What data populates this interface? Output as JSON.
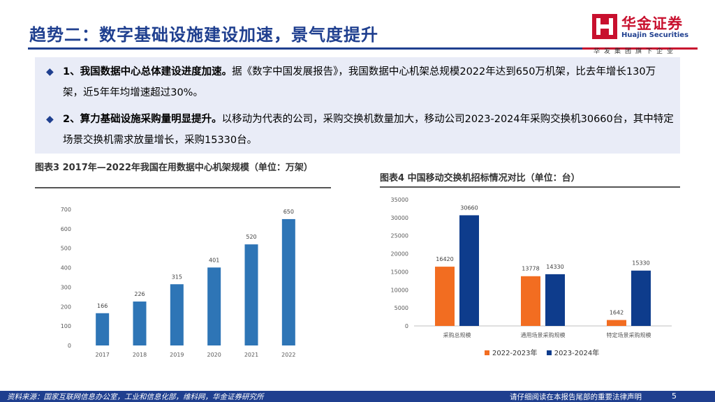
{
  "header": {
    "title": "趋势二：数字基础设施建设加速，景气度提升",
    "logo_cn": "华金证券",
    "logo_en": "Huajin Securities",
    "logo_slogan": "华发集团旗下企业",
    "accent_color": "#1f3f8f",
    "brand_red": "#c8102e"
  },
  "bullets": [
    {
      "bold": "1、我国数据中心总体建设进度加速。",
      "text": "据《数字中国发展报告》，我国数据中心机架总规模2022年达到650万机架，比去年增长130万架，近5年年均增速超过30%。"
    },
    {
      "bold": "2、算力基础设施采购量明显提升。",
      "text": "以移动为代表的公司，采购交换机数量加大，移动公司2023-2024年采购交换机30660台，其中特定场景交换机需求放量增长，采购15330台。"
    }
  ],
  "figure_titles": {
    "left": "图表3  2017年—2022年我国在用数据中心机架规模（单位：万架）",
    "right": "图表4  中国移动交换机招标情况对比（单位：台）"
  },
  "chart_data": [
    {
      "type": "bar",
      "categories": [
        "2017",
        "2018",
        "2019",
        "2020",
        "2021",
        "2022"
      ],
      "values": [
        166,
        226,
        315,
        401,
        520,
        650
      ],
      "ylim": [
        0,
        700
      ],
      "yticks": [
        0,
        100,
        200,
        300,
        400,
        500,
        600,
        700
      ],
      "grid": false,
      "legend": "none",
      "color": "#2e75b6"
    },
    {
      "type": "bar",
      "categories": [
        "采购总规模",
        "通用场景采购规模",
        "特定场景采购规模"
      ],
      "series": [
        {
          "name": "2022-2023年",
          "values": [
            16420,
            13778,
            1642
          ],
          "color": "#f26d21"
        },
        {
          "name": "2023-2024年",
          "values": [
            30660,
            14330,
            15330
          ],
          "color": "#0e3c8c"
        }
      ],
      "ylim": [
        0,
        35000
      ],
      "yticks": [
        0,
        5000,
        10000,
        15000,
        20000,
        25000,
        30000,
        35000
      ],
      "grid": false,
      "legend": "bottom"
    }
  ],
  "footer": {
    "source": "资料来源：国家互联网信息办公室，工业和信息化部，维科网，华金证券研究所",
    "note": "请仔细阅读在本报告尾部的重要法律声明",
    "page": "5"
  }
}
